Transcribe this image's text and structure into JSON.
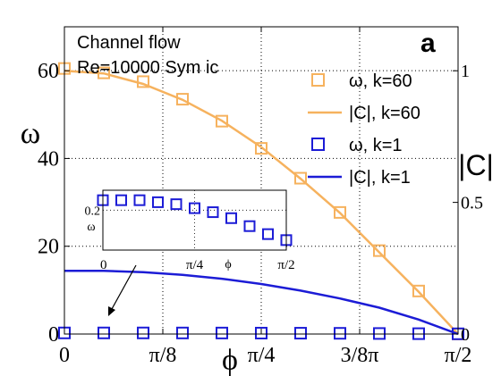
{
  "chart_data": {
    "type": "line",
    "panel_label": "a",
    "annotations": [
      "Channel flow",
      "Re=10000 Sym ic"
    ],
    "xlabel": "ϕ",
    "ylabel_left": "ω",
    "ylabel_right": "|C|",
    "xlim": [
      0,
      1.5708
    ],
    "ylim_left": [
      0,
      70
    ],
    "ylim_right": [
      0,
      1.167
    ],
    "x_ticks": [
      {
        "value": 0,
        "label": "0"
      },
      {
        "value": 0.3927,
        "label": "π/8"
      },
      {
        "value": 0.7854,
        "label": "π/4"
      },
      {
        "value": 1.1781,
        "label": "3/8π"
      },
      {
        "value": 1.5708,
        "label": "π/2"
      }
    ],
    "y_ticks_left": [
      {
        "value": 0,
        "label": "0"
      },
      {
        "value": 20,
        "label": "20"
      },
      {
        "value": 40,
        "label": "40"
      },
      {
        "value": 60,
        "label": "60"
      }
    ],
    "y_ticks_right": [
      {
        "value": 0,
        "label": "0"
      },
      {
        "value": 0.5,
        "label": "0.5"
      },
      {
        "value": 1,
        "label": "1"
      }
    ],
    "legend_position": "top-right",
    "series": [
      {
        "name": "ω, k=60",
        "kind": "markers",
        "axis": "left",
        "color": "#f6b25e",
        "x": [
          0,
          0.1571,
          0.3142,
          0.4712,
          0.6283,
          0.7854,
          0.9425,
          1.0996,
          1.2566,
          1.4137,
          1.5708
        ],
        "y": [
          60.5,
          59.5,
          57.5,
          53.5,
          48.5,
          42.3,
          35.5,
          27.7,
          19.0,
          9.8,
          0
        ]
      },
      {
        "name": "|C|, k=60",
        "kind": "line",
        "axis": "right",
        "color": "#f6b25e",
        "x": [
          0,
          0.1571,
          0.3142,
          0.4712,
          0.6283,
          0.7854,
          0.9425,
          1.0996,
          1.2566,
          1.4137,
          1.5708
        ],
        "y": [
          1.0,
          0.99,
          0.95,
          0.89,
          0.81,
          0.71,
          0.59,
          0.46,
          0.31,
          0.16,
          0
        ]
      },
      {
        "name": "ω, k=1",
        "kind": "markers",
        "axis": "left",
        "color": "#1c1cd6",
        "x": [
          0,
          0.1571,
          0.3142,
          0.4712,
          0.6283,
          0.7854,
          0.9425,
          1.0996,
          1.2566,
          1.4137,
          1.5708
        ],
        "y": [
          0.25,
          0.25,
          0.25,
          0.24,
          0.23,
          0.21,
          0.19,
          0.16,
          0.12,
          0.08,
          0.05
        ]
      },
      {
        "name": "|C|, k=1",
        "kind": "line",
        "axis": "right",
        "color": "#1c1cd6",
        "x": [
          0,
          0.1571,
          0.3142,
          0.4712,
          0.6283,
          0.7854,
          0.9425,
          1.0996,
          1.2566,
          1.4137,
          1.5708
        ],
        "y": [
          0.24,
          0.24,
          0.235,
          0.225,
          0.21,
          0.19,
          0.165,
          0.135,
          0.1,
          0.055,
          0
        ]
      }
    ],
    "inset": {
      "xlabel": "ϕ",
      "ylabel": "ω",
      "xlim": [
        0,
        1.5708
      ],
      "ylim": [
        0,
        0.3
      ],
      "x_ticks": [
        {
          "value": 0,
          "label": "0"
        },
        {
          "value": 0.7854,
          "label": "π/4"
        },
        {
          "value": 1.5708,
          "label": "π/2"
        }
      ],
      "y_ticks": [
        {
          "value": 0.2,
          "label": "0.2"
        }
      ],
      "series": {
        "name": "ω, k=1",
        "color": "#1c1cd6",
        "x": [
          0,
          0.1571,
          0.3142,
          0.4712,
          0.6283,
          0.7854,
          0.9425,
          1.0996,
          1.2566,
          1.4137,
          1.5708
        ],
        "y": [
          0.25,
          0.25,
          0.25,
          0.24,
          0.23,
          0.21,
          0.19,
          0.16,
          0.12,
          0.08,
          0.05
        ]
      }
    }
  }
}
